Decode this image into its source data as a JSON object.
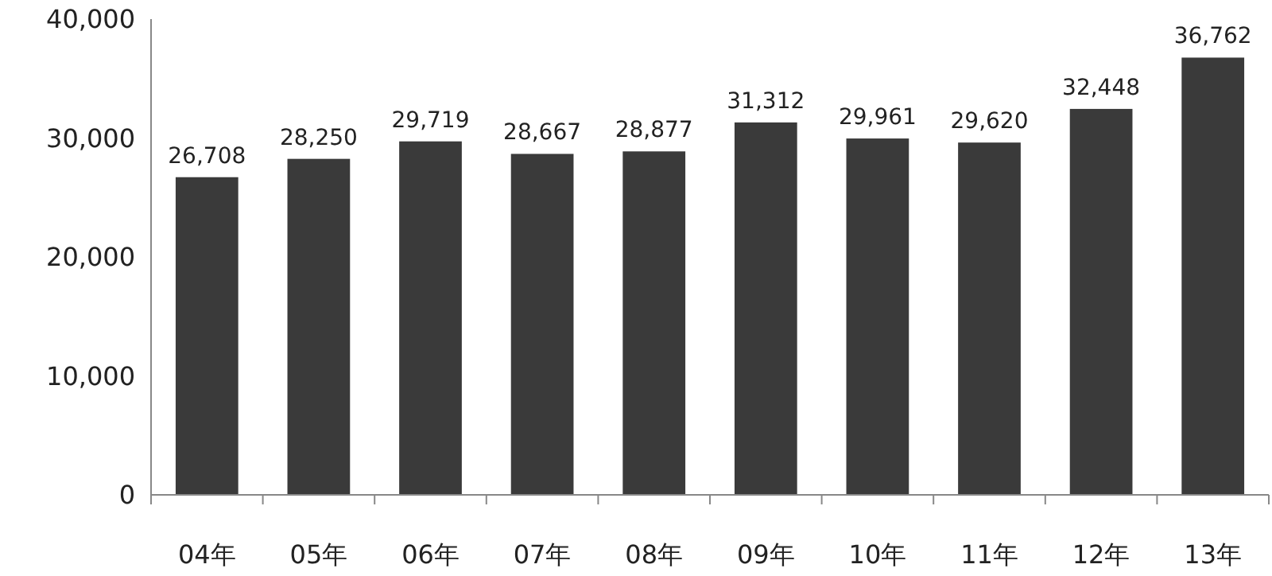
{
  "chart_data": {
    "type": "bar",
    "categories": [
      "04年",
      "05年",
      "06年",
      "07年",
      "08年",
      "09年",
      "10年",
      "11年",
      "12年",
      "13年"
    ],
    "values": [
      26708,
      28250,
      29719,
      28667,
      28877,
      31312,
      29961,
      29620,
      32448,
      36762
    ],
    "value_labels": [
      "26,708",
      "28,250",
      "29,719",
      "28,667",
      "28,877",
      "31,312",
      "29,961",
      "29,620",
      "32,448",
      "36,762"
    ],
    "color": "#3a3a3a",
    "ylim": [
      0,
      40000
    ],
    "yticks": [
      {
        "value": 0,
        "label": "0"
      },
      {
        "value": 10000,
        "label": "10,000"
      },
      {
        "value": 20000,
        "label": "20,000"
      },
      {
        "value": 30000,
        "label": "30,000"
      },
      {
        "value": 40000,
        "label": "40,000"
      }
    ]
  }
}
